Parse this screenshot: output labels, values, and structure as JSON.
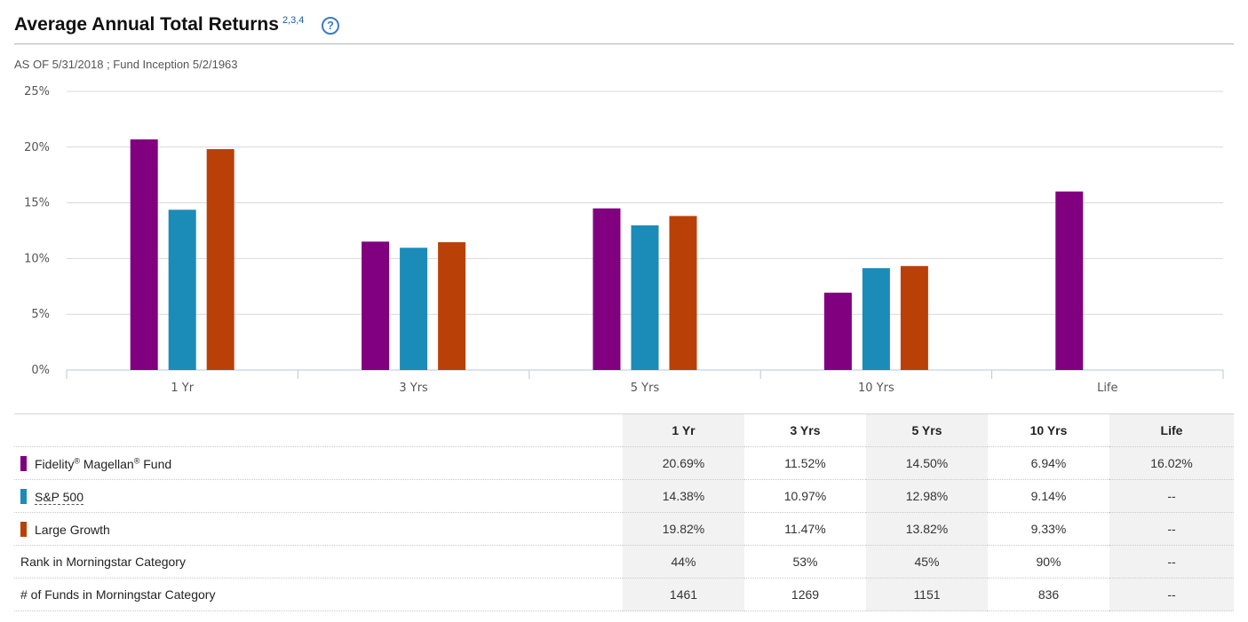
{
  "header": {
    "title": "Average Annual Total Returns",
    "title_sup": "2,3,4",
    "help_icon": "?"
  },
  "asof_line": "AS OF 5/31/2018 ; Fund Inception 5/2/1963",
  "chart_data": {
    "type": "bar",
    "categories": [
      "1 Yr",
      "3 Yrs",
      "5 Yrs",
      "10 Yrs",
      "Life"
    ],
    "series": [
      {
        "name": "Fidelity® Magellan® Fund",
        "color": "#800080",
        "values": [
          20.69,
          11.52,
          14.5,
          6.94,
          16.02
        ]
      },
      {
        "name": "S&P 500",
        "color": "#1b8bb8",
        "values": [
          14.38,
          10.97,
          12.98,
          9.14,
          null
        ]
      },
      {
        "name": "Large Growth",
        "color": "#b94107",
        "values": [
          19.82,
          11.47,
          13.82,
          9.33,
          null
        ]
      }
    ],
    "y_ticks": [
      "0%",
      "5%",
      "10%",
      "15%",
      "20%",
      "25%"
    ],
    "ylim": [
      0,
      25
    ],
    "grid": true,
    "title": "",
    "xlabel": "",
    "ylabel": ""
  },
  "table": {
    "headers": [
      "1 Yr",
      "3 Yrs",
      "5 Yrs",
      "10 Yrs",
      "Life"
    ],
    "rows": [
      {
        "label_main": "Fidelity",
        "label_sup1": "®",
        "label_mid": " Magellan",
        "label_sup2": "®",
        "label_end": " Fund",
        "color": "#800080",
        "values": [
          "20.69%",
          "11.52%",
          "14.50%",
          "6.94%",
          "16.02%"
        ]
      },
      {
        "label": "S&P 500",
        "color": "#1b8bb8",
        "values": [
          "14.38%",
          "10.97%",
          "12.98%",
          "9.14%",
          "--"
        ]
      },
      {
        "label": "Large Growth",
        "color": "#b94107",
        "values": [
          "19.82%",
          "11.47%",
          "13.82%",
          "9.33%",
          "--"
        ]
      },
      {
        "label": "Rank in Morningstar Category",
        "values": [
          "44%",
          "53%",
          "45%",
          "90%",
          "--"
        ]
      },
      {
        "label": "# of Funds in Morningstar Category",
        "values": [
          "1461",
          "1269",
          "1151",
          "836",
          "--"
        ]
      }
    ]
  }
}
